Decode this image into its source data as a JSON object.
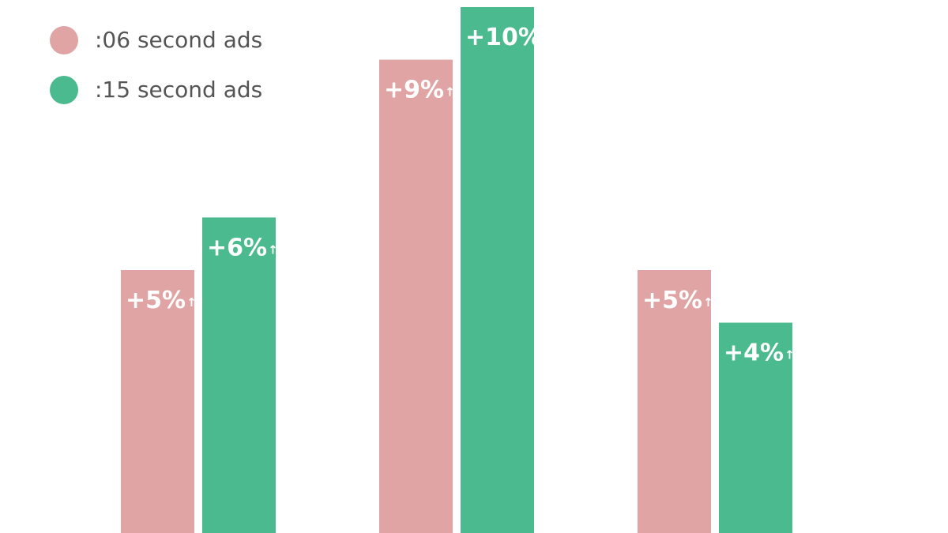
{
  "chart_data": {
    "type": "bar",
    "categories": [
      "",
      "",
      ""
    ],
    "series": [
      {
        "name": ":06 second ads",
        "color": "#e0a4a5",
        "values": [
          5,
          9,
          5
        ],
        "labels": [
          "+5%",
          "+9%",
          "+5%"
        ]
      },
      {
        "name": ":15 second ads",
        "color": "#4bba8e",
        "values": [
          6,
          10,
          4
        ],
        "labels": [
          "+6%",
          "+10%",
          "+4%"
        ]
      }
    ],
    "ylim": [
      0,
      10
    ],
    "label_suffix_symbol": "↑",
    "grid": false,
    "legend_position": "top-left"
  }
}
